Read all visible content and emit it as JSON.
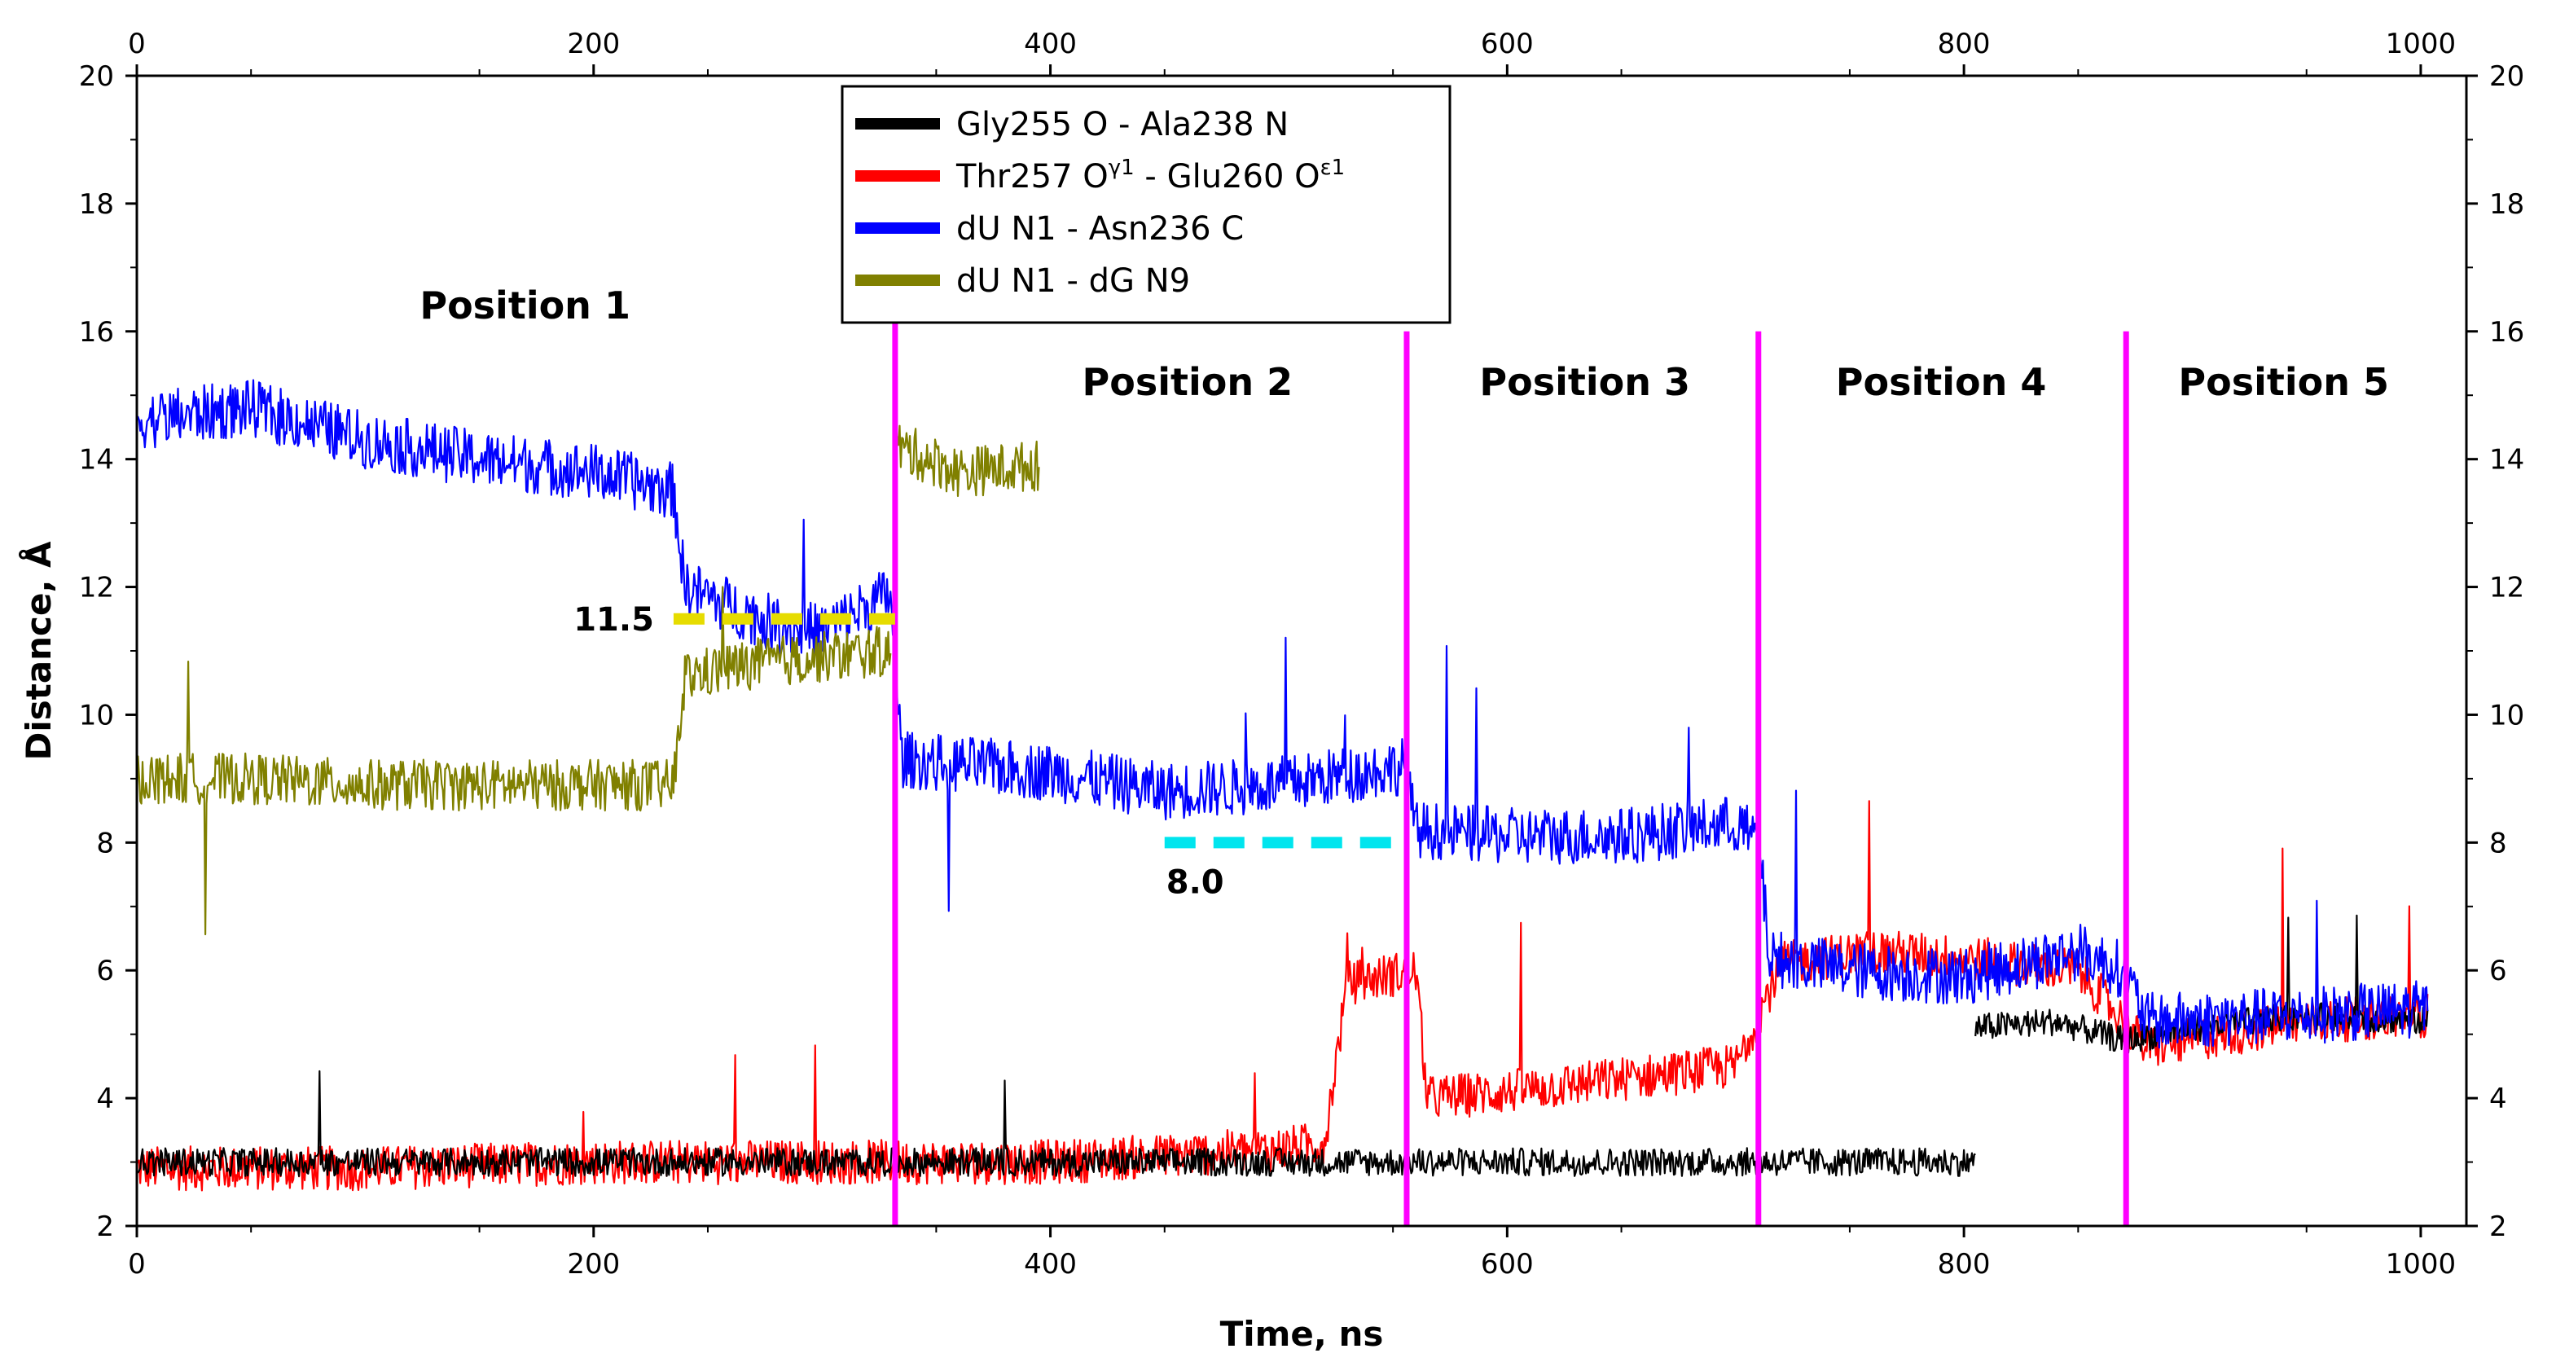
{
  "chart_data": {
    "type": "line",
    "title": "",
    "xlabel": "Time, ns",
    "ylabel": "Distance, Å",
    "xlim": [
      0,
      1020
    ],
    "ylim": [
      2,
      20
    ],
    "xticks": [
      0,
      200,
      400,
      600,
      800,
      1000
    ],
    "yticks": [
      2,
      4,
      6,
      8,
      10,
      12,
      14,
      16,
      18,
      20
    ],
    "grid": false,
    "legend_position": "top-center",
    "series": [
      {
        "name": "Gly255 O - Ala238 N",
        "color": "#000000",
        "noise": 0.22,
        "segments": [
          {
            "x": [
              0,
              200,
              400,
              600,
              700,
              790,
              805
            ],
            "y": [
              3.0,
              3.0,
              3.0,
              3.0,
              3.0,
              3.0,
              3.0
            ]
          },
          {
            "x": [
              805,
              840,
              870,
              900,
              950,
              1003
            ],
            "y": [
              5.1,
              5.2,
              4.9,
              5.1,
              5.3,
              5.2
            ]
          }
        ]
      },
      {
        "name": "Thr257 Oγ1 - Glu260 Oε1",
        "color": "#ff0000",
        "noise": 0.35,
        "segments": [
          {
            "x": [
              0,
              100,
              200,
              300,
              400,
              500,
              520,
              530,
              560,
              565,
              600,
              700,
              720,
              760,
              800,
              850,
              880,
              950,
              1003
            ],
            "y": [
              2.9,
              2.9,
              3.0,
              3.0,
              3.0,
              3.2,
              3.3,
              5.8,
              6.0,
              4.0,
              4.1,
              4.5,
              6.1,
              6.3,
              6.2,
              6.0,
              4.8,
              5.2,
              5.3
            ]
          }
        ]
      },
      {
        "name": "dU N1 - Asn236 C",
        "color": "#0000ff",
        "noise": 0.45,
        "segments": [
          {
            "x": [
              0,
              50,
              100,
              150,
              200,
              235,
              240,
              280,
              300,
              330,
              335,
              400,
              450,
              500,
              555,
              560,
              600,
              650,
              700,
              710,
              715,
              750,
              800,
              850,
              870,
              880,
              950,
              1003
            ],
            "y": [
              14.6,
              14.8,
              14.3,
              14.0,
              13.8,
              13.5,
              12.0,
              11.4,
              11.3,
              11.9,
              9.3,
              9.1,
              8.8,
              8.9,
              9.2,
              8.2,
              8.1,
              8.1,
              8.3,
              8.0,
              6.2,
              6.0,
              5.9,
              6.3,
              6.0,
              5.2,
              5.3,
              5.4
            ]
          }
        ]
      },
      {
        "name": "dU N1 - dG N9",
        "color": "#808000",
        "noise": 0.4,
        "segments": [
          {
            "x": [
              0,
              50,
              100,
              150,
              200,
              235,
              240,
              270,
              300,
              330
            ],
            "y": [
              9.0,
              9.0,
              8.9,
              8.9,
              8.9,
              8.9,
              10.6,
              10.8,
              10.9,
              11.0
            ]
          },
          {
            "x": [
              333,
              360,
              395
            ],
            "y": [
              14.2,
              13.8,
              13.9
            ]
          }
        ]
      }
    ],
    "vertical_lines": [
      332,
      556,
      710,
      871
    ],
    "vertical_line_color": "#ff00ff",
    "regions": [
      {
        "label": "Position 1",
        "x": 170,
        "y": 16.2
      },
      {
        "label": "Position 2",
        "x": 460,
        "y": 15.0
      },
      {
        "label": "Position 3",
        "x": 634,
        "y": 15.0
      },
      {
        "label": "Position 4",
        "x": 790,
        "y": 15.0
      },
      {
        "label": "Position 5",
        "x": 940,
        "y": 15.0
      }
    ],
    "reference_lines": [
      {
        "value": 11.5,
        "label": "11.5",
        "x_start": 235,
        "x_end": 332,
        "color": "#e6dc00",
        "label_side": "left"
      },
      {
        "value": 8.0,
        "label": "8.0",
        "x_start": 450,
        "x_end": 556,
        "color": "#00e5ee",
        "label_side": "below"
      }
    ]
  }
}
